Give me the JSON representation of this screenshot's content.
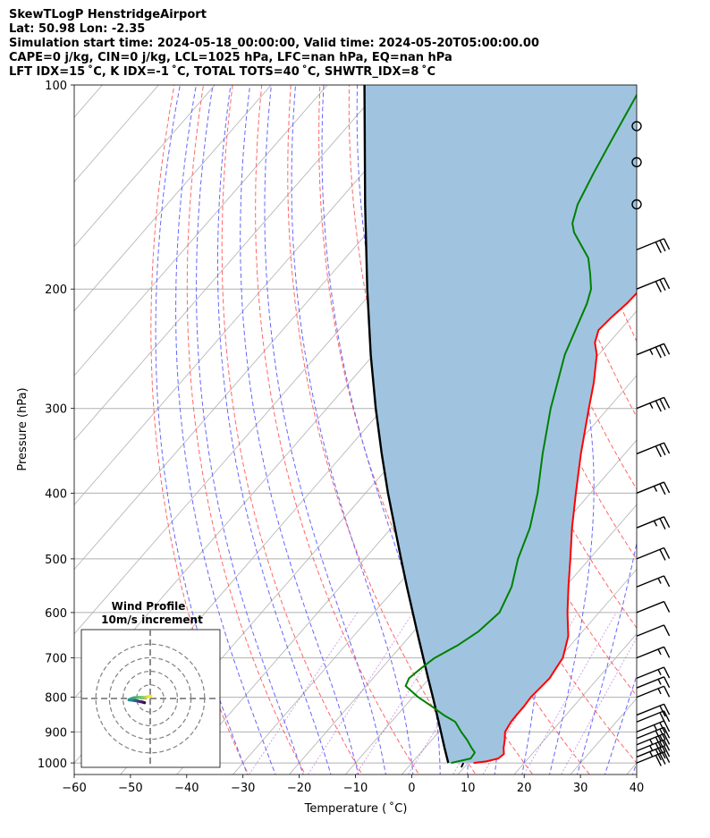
{
  "header": {
    "title": "SkewTLogP HenstridgeAirport",
    "location": "Lat: 50.98   Lon: -2.35",
    "times": "Simulation start time: 2024-05-18_00:00:00, Valid time: 2024-05-20T05:00:00.00",
    "params": "CAPE=0 j/kg, CIN=0 j/kg, LCL=1025 hPa, LFC=nan hPa, EQ=nan hPa",
    "indices": "LFT IDX=15$^\\circ$C, K IDX=-1$^\\circ$C, TOTAL TOTS=40$^\\circ$C, SHWTR_IDX=8$^\\circ$C"
  },
  "indices_display": "LFT IDX=15 ˚C, K IDX=-1 ˚C, TOTAL TOTS=40 ˚C, SHWTR_IDX=8 ˚C",
  "colors": {
    "temperature": "#ff0000",
    "dewpoint": "#008000",
    "parcel": "#000000",
    "shade": "#a0c4df",
    "dry_adiabat": "#ff6666",
    "moist_adiabat": "#6666ff",
    "mixing_ratio": "#9933cc",
    "isotherm": "#b0b0b0",
    "grid": "#b0b0b0"
  },
  "chart_data": {
    "type": "line",
    "title": "SkewTLogP HenstridgeAirport",
    "xlabel": "Temperature ( ˚C)",
    "ylabel": "Pressure (hPa)",
    "xlim": [
      -60,
      40
    ],
    "ylim": [
      1040,
      100
    ],
    "x_ticks": [
      -60,
      -50,
      -40,
      -30,
      -20,
      -10,
      0,
      10,
      20,
      30,
      40
    ],
    "x_tick_labels": [
      "−60",
      "−50",
      "−40",
      "−30",
      "−20",
      "−10",
      "0",
      "10",
      "20",
      "30",
      "40"
    ],
    "y_ticks": [
      1000,
      900,
      800,
      700,
      600,
      500,
      400,
      300,
      200,
      100
    ],
    "y_tick_labels": [
      "1000",
      "900",
      "800",
      "700",
      "600",
      "500",
      "400",
      "300",
      "200",
      "100"
    ],
    "skew_degrees_per_decade": 105,
    "series": [
      {
        "name": "Temperature",
        "color": "#ff0000",
        "points": [
          [
            1000,
            11
          ],
          [
            995,
            13
          ],
          [
            985,
            14.7
          ],
          [
            970,
            15
          ],
          [
            950,
            14
          ],
          [
            925,
            13
          ],
          [
            900,
            11.8
          ],
          [
            870,
            11.3
          ],
          [
            850,
            11.2
          ],
          [
            825,
            11.2
          ],
          [
            800,
            11
          ],
          [
            775,
            11.2
          ],
          [
            750,
            11.4
          ],
          [
            725,
            11
          ],
          [
            700,
            10.6
          ],
          [
            650,
            8.2
          ],
          [
            600,
            4.4
          ],
          [
            550,
            0.6
          ],
          [
            500,
            -3.4
          ],
          [
            450,
            -7.9
          ],
          [
            400,
            -12.6
          ],
          [
            350,
            -17.8
          ],
          [
            300,
            -23.4
          ],
          [
            275,
            -26.5
          ],
          [
            250,
            -30.3
          ],
          [
            240,
            -32.5
          ],
          [
            230,
            -33.8
          ],
          [
            220,
            -33.5
          ],
          [
            210,
            -32.9
          ],
          [
            200,
            -32.7
          ],
          [
            190,
            -33.5
          ],
          [
            180,
            -34.2
          ],
          [
            170,
            -35
          ],
          [
            160,
            -36.4
          ],
          [
            150,
            -38.5
          ],
          [
            140,
            -41
          ],
          [
            130,
            -43.7
          ],
          [
            120,
            -46.7
          ],
          [
            110,
            -49.8
          ],
          [
            100,
            -53
          ]
        ]
      },
      {
        "name": "Dewpoint",
        "color": "#008000",
        "points": [
          [
            1000,
            7
          ],
          [
            985,
            9.8
          ],
          [
            965,
            9.6
          ],
          [
            950,
            8.3
          ],
          [
            925,
            6.3
          ],
          [
            900,
            4
          ],
          [
            870,
            1.4
          ],
          [
            850,
            -1.7
          ],
          [
            825,
            -5.2
          ],
          [
            800,
            -9
          ],
          [
            770,
            -13
          ],
          [
            750,
            -13.6
          ],
          [
            725,
            -13
          ],
          [
            700,
            -12.2
          ],
          [
            670,
            -10
          ],
          [
            640,
            -8.5
          ],
          [
            600,
            -7.7
          ],
          [
            550,
            -9.5
          ],
          [
            500,
            -12.7
          ],
          [
            450,
            -15.4
          ],
          [
            400,
            -19.4
          ],
          [
            350,
            -24.6
          ],
          [
            300,
            -30.2
          ],
          [
            250,
            -36
          ],
          [
            210,
            -40
          ],
          [
            200,
            -41.5
          ],
          [
            190,
            -44
          ],
          [
            180,
            -46.8
          ],
          [
            165,
            -53.3
          ],
          [
            160,
            -55
          ],
          [
            150,
            -57
          ],
          [
            135,
            -59
          ],
          [
            120,
            -61
          ],
          [
            100,
            -64
          ]
        ]
      },
      {
        "name": "Parcel",
        "color": "#000000",
        "points": [
          [
            1000,
            6.5
          ],
          [
            950,
            3.5
          ],
          [
            900,
            0.4
          ],
          [
            850,
            -2.9
          ],
          [
            800,
            -6.4
          ],
          [
            750,
            -10.2
          ],
          [
            700,
            -14.2
          ],
          [
            650,
            -18.5
          ],
          [
            600,
            -23.1
          ],
          [
            550,
            -28.1
          ],
          [
            500,
            -33.5
          ],
          [
            450,
            -39.4
          ],
          [
            400,
            -46
          ],
          [
            350,
            -53.2
          ],
          [
            300,
            -61.3
          ],
          [
            250,
            -70.5
          ],
          [
            200,
            -81.3
          ],
          [
            150,
            -94.8
          ],
          [
            100,
            -113.4
          ]
        ]
      }
    ],
    "wind_barbs": {
      "pressures": [
        1000,
        980,
        960,
        940,
        920,
        900,
        870,
        850,
        800,
        775,
        750,
        700,
        650,
        600,
        550,
        500,
        450,
        400,
        350,
        300,
        250,
        200,
        175,
        150,
        130,
        115
      ],
      "descriptions": [
        "30kt",
        "35kt",
        "35kt",
        "35kt",
        "30kt",
        "25kt",
        "20kt",
        "20kt",
        "15kt",
        "15kt",
        "15kt",
        "15kt",
        "10kt",
        "10kt",
        "15kt",
        "20kt",
        "25kt",
        "25kt",
        "30kt",
        "35kt",
        "35kt",
        "30kt",
        "30kt",
        "calm",
        "calm",
        "calm"
      ]
    },
    "hodograph": {
      "title": "Wind Profile",
      "subtitle": "10m/s increment",
      "ring_spacing_ms": 10,
      "points_ms": [
        [
          -4.2,
          -3.1
        ],
        [
          -5.8,
          -2.6
        ],
        [
          -7.5,
          -2.3
        ],
        [
          -9.1,
          -1.9
        ],
        [
          -10.8,
          -1.6
        ],
        [
          -12.2,
          -1.4
        ],
        [
          -13.4,
          -1.2
        ],
        [
          -14.5,
          -1.1
        ],
        [
          -15.6,
          -1.0
        ],
        [
          -13.5,
          0.0
        ],
        [
          -11.8,
          0.6
        ],
        [
          -9.6,
          0.7
        ],
        [
          -7.8,
          0.8
        ],
        [
          -5.7,
          0.8
        ],
        [
          -3.8,
          0.8
        ],
        [
          -2.4,
          1.2
        ],
        [
          -0.6,
          1.6
        ],
        [
          0.5,
          1.8
        ]
      ]
    }
  }
}
